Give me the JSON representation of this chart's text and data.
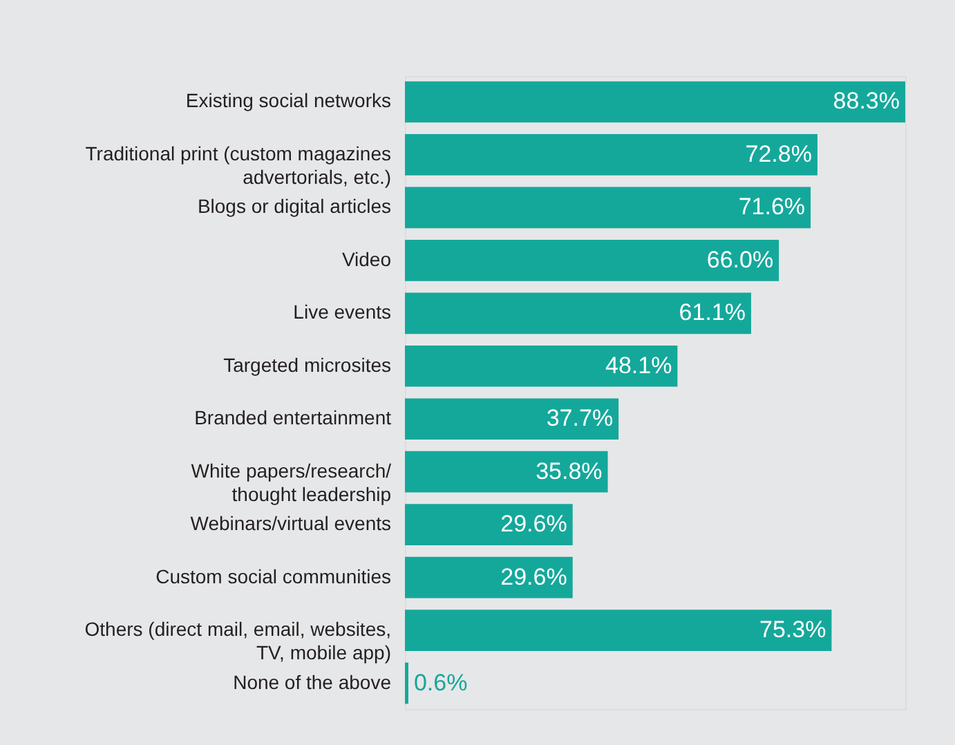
{
  "chart_data": {
    "type": "bar",
    "orientation": "horizontal",
    "data_labels": true,
    "color": "#14a89b",
    "categories": [
      "Existing social networks",
      "Traditional print (custom magazines\nadvertorials, etc.)",
      "Blogs or digital articles",
      "Video",
      "Live events",
      "Targeted microsites",
      "Branded entertainment",
      "White papers/research/\nthought leadership",
      "Webinars/virtual events",
      "Custom social communities",
      "Others (direct mail, email, websites,\nTV, mobile app)",
      "None of the above"
    ],
    "values": [
      88.3,
      72.8,
      71.6,
      66.0,
      61.1,
      48.1,
      37.7,
      35.8,
      29.6,
      29.6,
      75.3,
      0.6
    ],
    "value_labels": [
      "88.3%",
      "72.8%",
      "71.6%",
      "66.0%",
      "61.1%",
      "48.1%",
      "37.7%",
      "35.8%",
      "29.6%",
      "29.6%",
      "75.3%",
      "0.6%"
    ]
  }
}
